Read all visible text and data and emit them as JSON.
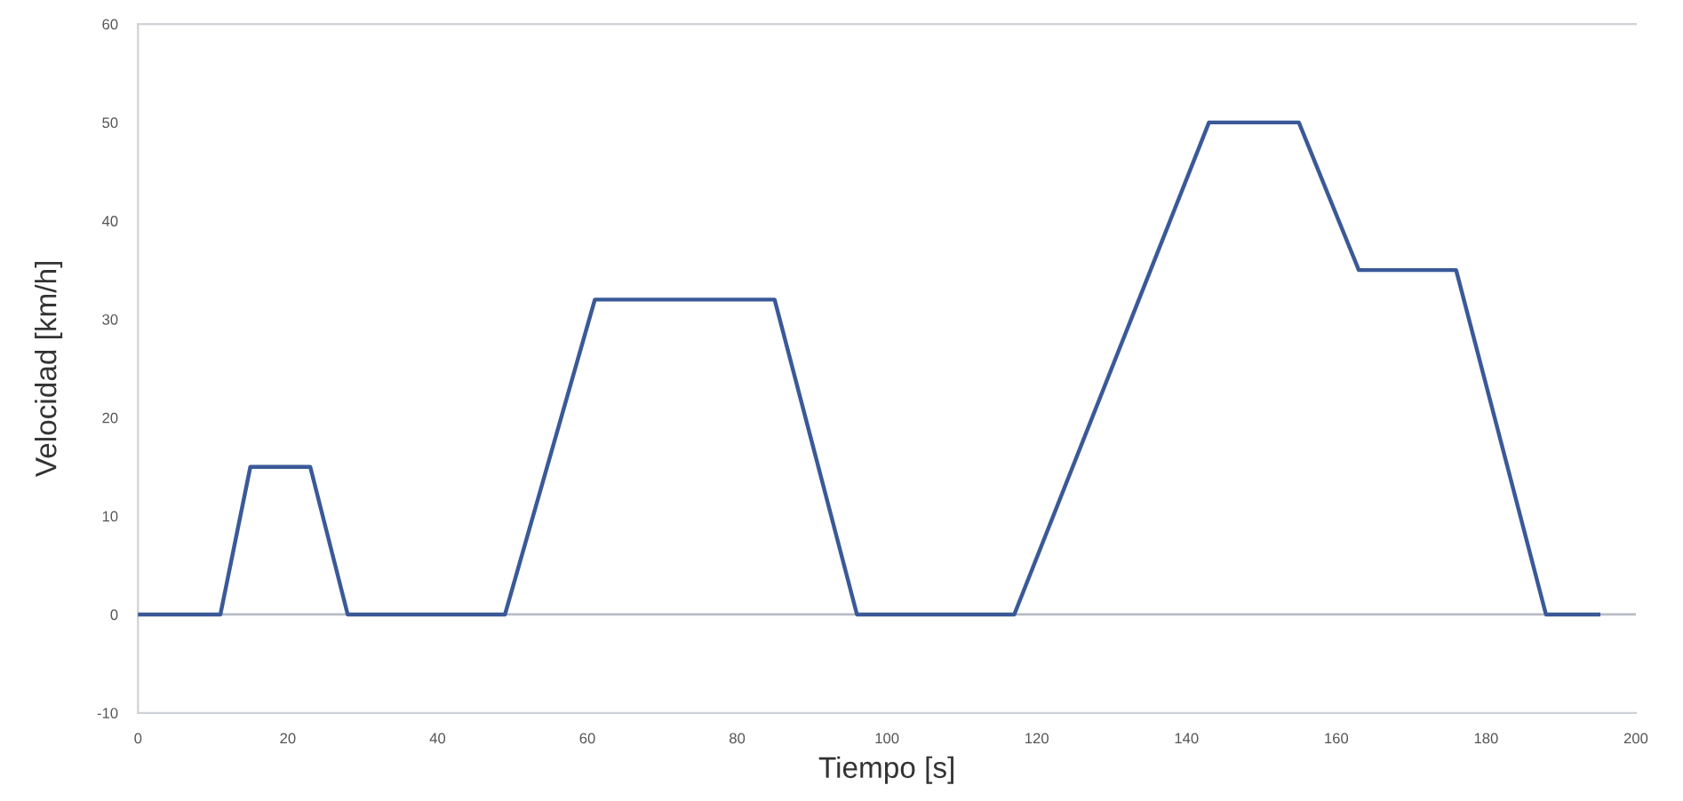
{
  "chart_data": {
    "type": "line",
    "xlabel": "Tiempo [s]",
    "ylabel": "Velocidad [km/h]",
    "x": [
      0,
      11,
      15,
      23,
      28,
      49,
      61,
      85,
      96,
      117,
      143,
      155,
      163,
      176,
      188,
      195
    ],
    "series": [
      {
        "color": "#3b5998",
        "values": [
          0,
          0,
          15,
          15,
          0,
          0,
          32,
          32,
          0,
          0,
          50,
          50,
          35,
          35,
          0,
          0
        ]
      }
    ],
    "xlim": [
      0,
      200
    ],
    "xticks": [
      0,
      20,
      40,
      60,
      80,
      100,
      120,
      140,
      160,
      180,
      200
    ],
    "ylim": [
      -10,
      60
    ],
    "yticks": [
      -10,
      0,
      10,
      20,
      30,
      40,
      50,
      60
    ],
    "ref_lines": [
      {
        "axis": "y",
        "value": 0,
        "color": "#b8bcc4"
      }
    ],
    "grid": false,
    "legend": false,
    "marker": "none",
    "line_style": "solid"
  }
}
